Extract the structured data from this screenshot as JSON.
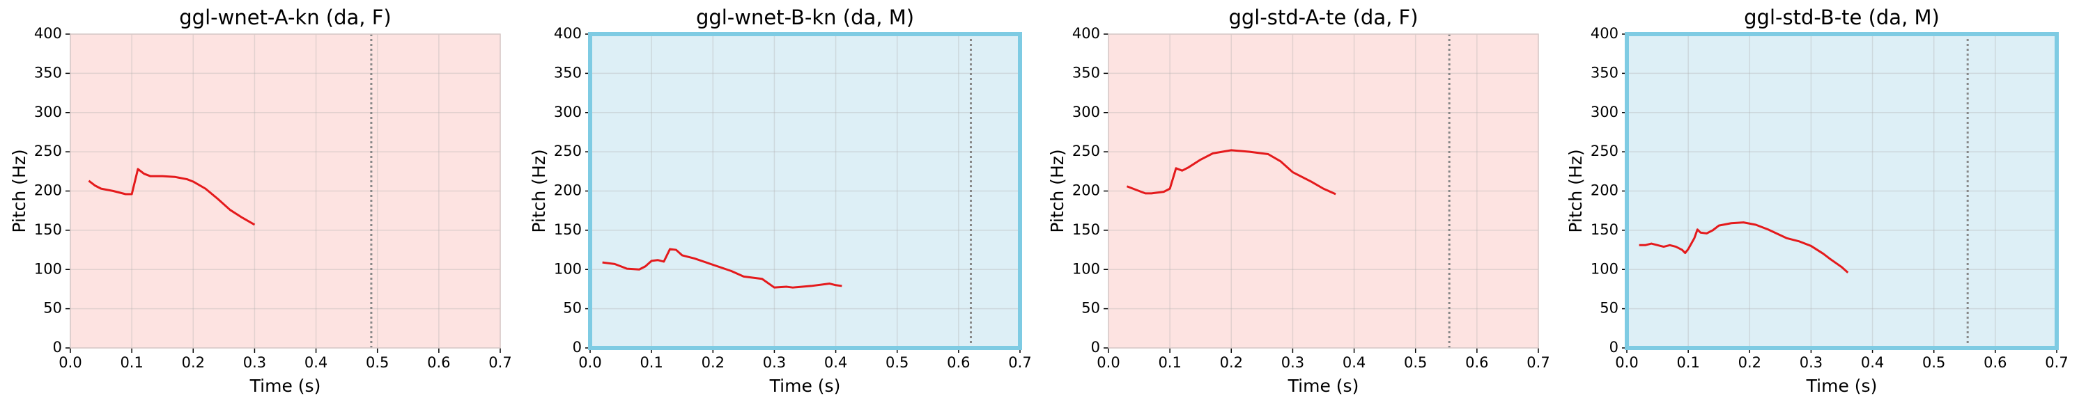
{
  "chart_data": [
    {
      "type": "line",
      "title": "ggl-wnet-A-kn (da, F)",
      "x_label": "Time (s)",
      "y_label": "Pitch (Hz)",
      "background": "#fde3e1",
      "grid": true,
      "vline": 0.49,
      "xlim": [
        0,
        0.7
      ],
      "ylim": [
        0,
        400
      ],
      "xticks": [
        {
          "value": 0,
          "label": "0.0"
        },
        0.1,
        0.2,
        0.3,
        0.4,
        0.5,
        0.6,
        0.7
      ],
      "yticks": [
        0,
        50,
        100,
        150,
        200,
        250,
        300,
        350,
        400
      ],
      "series": [
        {
          "color": "#e41a1c",
          "x": [
            0.03,
            0.04,
            0.05,
            0.07,
            0.08,
            0.09,
            0.1,
            0.11,
            0.12,
            0.13,
            0.15,
            0.17,
            0.19,
            0.2,
            0.22,
            0.24,
            0.26,
            0.28,
            0.3
          ],
          "values": [
            213,
            207,
            203,
            200,
            198,
            196,
            196,
            228,
            222,
            219,
            219,
            218,
            215,
            212,
            203,
            190,
            176,
            166,
            157
          ]
        }
      ]
    },
    {
      "type": "line",
      "title": "ggl-wnet-B-kn (da, M)",
      "x_label": "Time (s)",
      "y_label": "Pitch (Hz)",
      "background": "#ddeff6",
      "frame": "#7ecbe3",
      "grid": true,
      "vline": 0.62,
      "xlim": [
        0,
        0.7
      ],
      "ylim": [
        0,
        400
      ],
      "xticks": [
        {
          "value": 0,
          "label": "0.0"
        },
        0.1,
        0.2,
        0.3,
        0.4,
        0.5,
        0.6,
        0.7
      ],
      "yticks": [
        0,
        50,
        100,
        150,
        200,
        250,
        300,
        350,
        400
      ],
      "series": [
        {
          "color": "#e41a1c",
          "x": [
            0.02,
            0.04,
            0.06,
            0.08,
            0.09,
            0.1,
            0.11,
            0.12,
            0.13,
            0.14,
            0.15,
            0.17,
            0.2,
            0.23,
            0.25,
            0.28,
            0.3,
            0.32,
            0.33,
            0.36,
            0.39,
            0.4,
            0.41
          ],
          "values": [
            109,
            107,
            101,
            100,
            104,
            111,
            112,
            110,
            126,
            125,
            118,
            114,
            106,
            98,
            91,
            88,
            77,
            78,
            77,
            79,
            82,
            80,
            79
          ]
        }
      ]
    },
    {
      "type": "line",
      "title": "ggl-std-A-te (da, F)",
      "x_label": "Time (s)",
      "y_label": "Pitch (Hz)",
      "background": "#fde3e1",
      "grid": true,
      "vline": 0.555,
      "xlim": [
        0,
        0.7
      ],
      "ylim": [
        0,
        400
      ],
      "xticks": [
        {
          "value": 0,
          "label": "0.0"
        },
        0.1,
        0.2,
        0.3,
        0.4,
        0.5,
        0.6,
        0.7
      ],
      "yticks": [
        0,
        50,
        100,
        150,
        200,
        250,
        300,
        350,
        400
      ],
      "series": [
        {
          "color": "#e41a1c",
          "x": [
            0.03,
            0.05,
            0.06,
            0.07,
            0.09,
            0.1,
            0.11,
            0.12,
            0.13,
            0.15,
            0.17,
            0.2,
            0.23,
            0.26,
            0.28,
            0.3,
            0.33,
            0.35,
            0.37
          ],
          "values": [
            206,
            200,
            197,
            197,
            199,
            203,
            229,
            226,
            230,
            240,
            248,
            252,
            250,
            247,
            238,
            224,
            212,
            203,
            196
          ]
        }
      ]
    },
    {
      "type": "line",
      "title": "ggl-std-B-te (da, M)",
      "x_label": "Time (s)",
      "y_label": "Pitch (Hz)",
      "background": "#ddeff6",
      "frame": "#7ecbe3",
      "grid": true,
      "vline": 0.555,
      "xlim": [
        0,
        0.7
      ],
      "ylim": [
        0,
        400
      ],
      "xticks": [
        {
          "value": 0,
          "label": "0.0"
        },
        0.1,
        0.2,
        0.3,
        0.4,
        0.5,
        0.6,
        0.7
      ],
      "yticks": [
        0,
        50,
        100,
        150,
        200,
        250,
        300,
        350,
        400
      ],
      "series": [
        {
          "color": "#e41a1c",
          "x": [
            0.02,
            0.03,
            0.04,
            0.06,
            0.07,
            0.08,
            0.09,
            0.095,
            0.1,
            0.11,
            0.115,
            0.12,
            0.13,
            0.14,
            0.15,
            0.17,
            0.19,
            0.21,
            0.23,
            0.26,
            0.28,
            0.3,
            0.32,
            0.33,
            0.35,
            0.36
          ],
          "values": [
            131,
            131,
            133,
            129,
            131,
            129,
            125,
            121,
            126,
            140,
            151,
            147,
            146,
            150,
            156,
            159,
            160,
            157,
            151,
            140,
            136,
            130,
            120,
            114,
            103,
            96
          ]
        }
      ]
    }
  ]
}
